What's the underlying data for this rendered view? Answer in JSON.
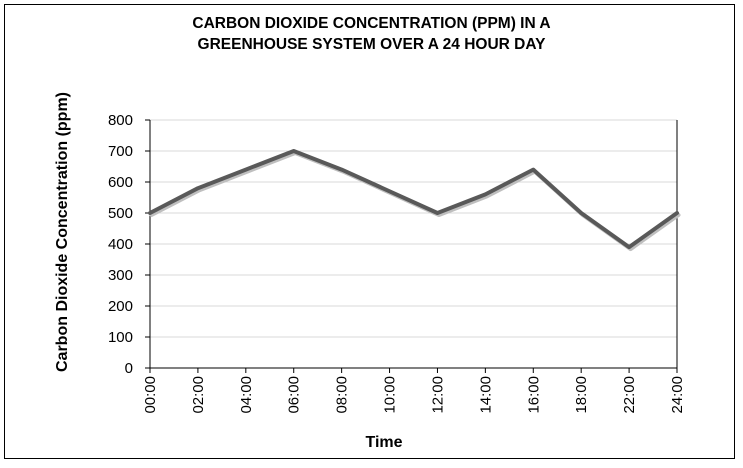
{
  "chart_data": {
    "type": "line",
    "title": "CARBON DIOXIDE CONCENTRATION (PPM) IN A\nGREENHOUSE SYSTEM OVER A 24 HOUR DAY",
    "xlabel": "Time",
    "ylabel": "Carbon Dioxide Concentration (ppm)",
    "ylim": [
      0,
      800
    ],
    "yticks": [
      "0",
      "100",
      "200",
      "300",
      "400",
      "500",
      "600",
      "700",
      "800"
    ],
    "categories": [
      "00:00",
      "02:00",
      "04:00",
      "06:00",
      "08:00",
      "10:00",
      "12:00",
      "14:00",
      "16:00",
      "18:00",
      "22:00",
      "24:00"
    ],
    "series": [
      {
        "values": [
          500,
          580,
          640,
          700,
          640,
          570,
          500,
          560,
          640,
          500,
          390,
          500
        ]
      }
    ],
    "grid": true,
    "legend": "none",
    "line_color": "#595959",
    "grid_color": "#d9d9d9"
  }
}
